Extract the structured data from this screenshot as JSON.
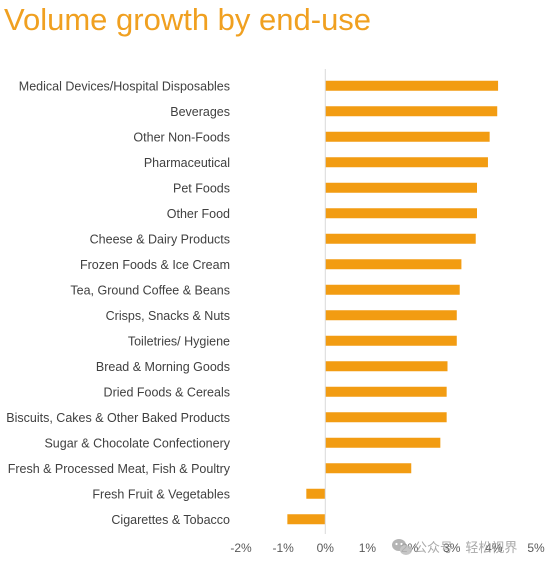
{
  "chart_data": {
    "type": "bar",
    "orientation": "horizontal",
    "title": "Volume growth by end-use",
    "categories": [
      "Medical Devices/Hospital Disposables",
      "Beverages",
      "Other Non-Foods",
      "Pharmaceutical",
      "Pet Foods",
      "Other Food",
      "Cheese & Dairy Products",
      "Frozen Foods & Ice Cream",
      "Tea, Ground Coffee & Beans",
      "Crisps, Snacks & Nuts",
      "Toiletries/ Hygiene",
      "Bread & Morning Goods",
      "Dried Foods & Cereals",
      "Biscuits, Cakes & Other Baked Products",
      "Sugar & Chocolate Confectionery",
      "Fresh & Processed Meat, Fish & Poultry",
      "Fresh Fruit & Vegetables",
      "Cigarettes & Tobacco"
    ],
    "values": [
      4.1,
      4.08,
      3.9,
      3.86,
      3.6,
      3.6,
      3.57,
      3.23,
      3.19,
      3.12,
      3.12,
      2.9,
      2.88,
      2.88,
      2.73,
      2.04,
      -0.45,
      -0.9
    ],
    "xlim": [
      -2,
      5
    ],
    "xticks": [
      "-2%",
      "-1%",
      "0%",
      "1%",
      "2%",
      "3%",
      "4%",
      "5%"
    ],
    "bar_color": "#f29c12",
    "title_color": "#f0a020",
    "grid": false
  },
  "watermark": {
    "icon": "wechat-icon",
    "text": "公众号 · 轻松视界"
  }
}
